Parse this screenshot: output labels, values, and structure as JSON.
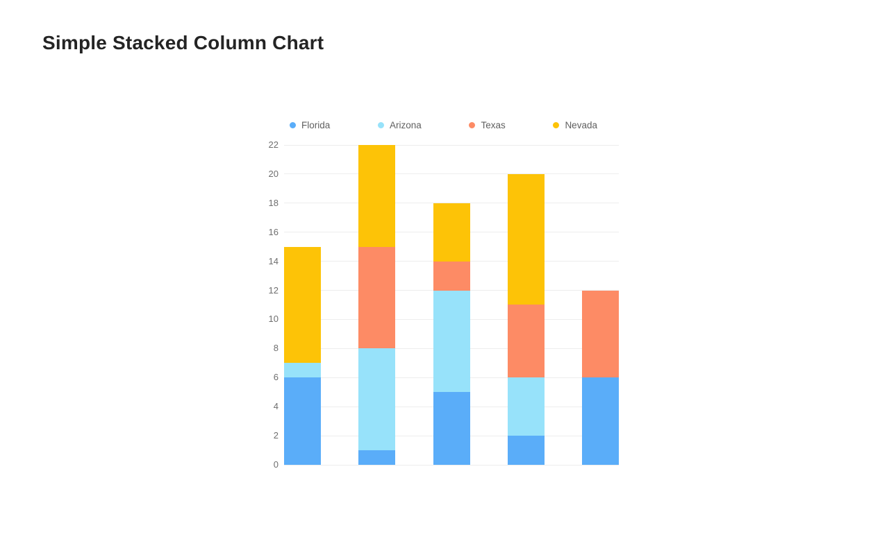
{
  "page": {
    "background": "#ffffff"
  },
  "header": {
    "title": "Simple Stacked Column Chart",
    "title_color": "#242424"
  },
  "chart_data": {
    "type": "bar",
    "stacked": true,
    "title": "Simple Stacked Column Chart",
    "categories": [
      "",
      "",
      "",
      "",
      ""
    ],
    "series": [
      {
        "name": "Florida",
        "color": "#5AADF9",
        "values": [
          6,
          1,
          5,
          2,
          6
        ]
      },
      {
        "name": "Arizona",
        "color": "#97E2FA",
        "values": [
          1,
          7,
          7,
          4,
          0
        ]
      },
      {
        "name": "Texas",
        "color": "#FD8B65",
        "values": [
          0,
          7,
          2,
          5,
          6
        ]
      },
      {
        "name": "Nevada",
        "color": "#FDC307",
        "values": [
          8,
          7,
          4,
          9,
          0
        ]
      }
    ],
    "stack_totals": [
      15,
      22,
      18,
      20,
      12
    ],
    "xlabel": "",
    "ylabel": "",
    "ylim": [
      0,
      22
    ],
    "y_tick_step": 2,
    "y_tick_labels": [
      "0",
      "2",
      "4",
      "6",
      "8",
      "10",
      "12",
      "14",
      "16",
      "18",
      "20",
      "22"
    ],
    "grid": true,
    "grid_color": "#ededed",
    "tick_label_color": "#6e6e6e",
    "legend_position": "top",
    "legend_text_color": "#5f5f5f",
    "x_axis_labels_visible": false
  }
}
